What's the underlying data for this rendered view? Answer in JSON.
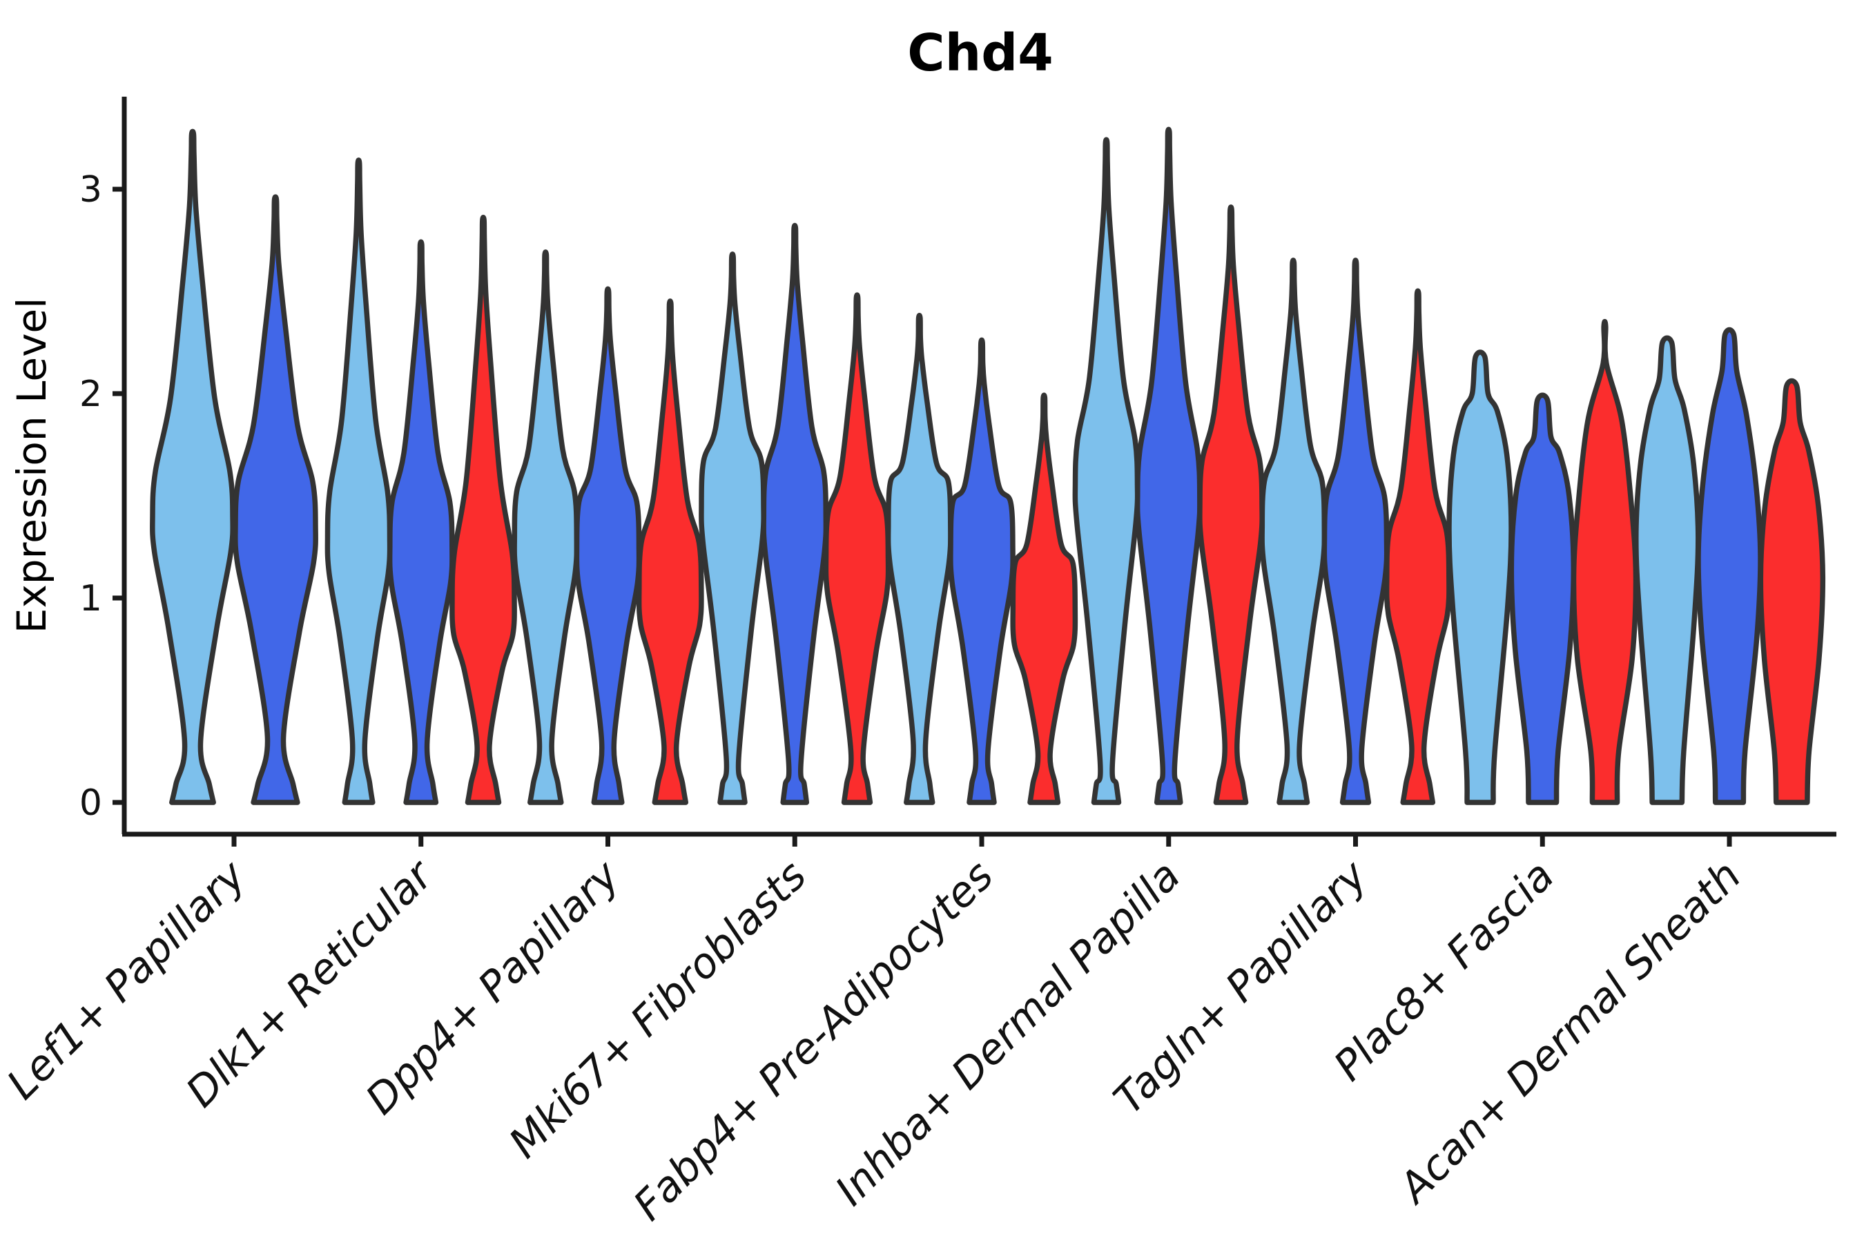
{
  "title": "Chd4",
  "chart_data": {
    "type": "violin",
    "title": "Chd4",
    "ylabel": "Expression Level",
    "xlabel": "",
    "ylim": [
      0,
      3.45
    ],
    "y_ticks": [
      0,
      1,
      2,
      3
    ],
    "grid": "off",
    "legend": "none",
    "x_tick_rotation": 45,
    "categories": [
      "Lef1+ Papillary",
      "Dlk1+ Reticular",
      "Dpp4+ Papillary",
      "Mki67+ Fibroblasts",
      "Fabp4+ Pre-Adipocytes",
      "Inhba+ Dermal Papilla",
      "Tagln+ Papillary",
      "Plac8+ Fascia",
      "Acan+ Dermal Sheath"
    ],
    "series_colors": {
      "light_blue": "#7DC0EC",
      "royal_blue": "#4167E8",
      "red": "#FB2D2D"
    },
    "stroke_color": "#333333",
    "axis_color": "#1a1a1a",
    "groups": [
      {
        "category": "Lef1+ Papillary",
        "violins": [
          {
            "series": "light_blue",
            "max": 3.27,
            "peak": 1.4,
            "pinch": 0.3,
            "foot": 0.52,
            "shape": "tailed"
          },
          {
            "series": "royal_blue",
            "max": 2.95,
            "peak": 1.35,
            "pinch": 0.32,
            "foot": 0.55,
            "shape": "tailed"
          }
        ]
      },
      {
        "category": "Dlk1+ Reticular",
        "violins": [
          {
            "series": "light_blue",
            "max": 3.13,
            "peak": 1.3,
            "pinch": 0.3,
            "foot": 0.45,
            "shape": "tailed"
          },
          {
            "series": "royal_blue",
            "max": 2.73,
            "peak": 1.25,
            "pinch": 0.3,
            "foot": 0.48,
            "shape": "tailed"
          },
          {
            "series": "red",
            "max": 2.85,
            "peak": 1.0,
            "pinch": 0.28,
            "foot": 0.5,
            "shape": "tailed"
          }
        ]
      },
      {
        "category": "Dpp4+ Papillary",
        "violins": [
          {
            "series": "light_blue",
            "max": 2.68,
            "peak": 1.3,
            "pinch": 0.3,
            "foot": 0.5,
            "shape": "tailed"
          },
          {
            "series": "royal_blue",
            "max": 2.5,
            "peak": 1.25,
            "pinch": 0.3,
            "foot": 0.45,
            "shape": "tailed"
          },
          {
            "series": "red",
            "max": 2.44,
            "peak": 1.05,
            "pinch": 0.28,
            "foot": 0.5,
            "shape": "tailed"
          }
        ]
      },
      {
        "category": "Mki67+ Fibroblasts",
        "violins": [
          {
            "series": "light_blue",
            "max": 2.67,
            "peak": 1.45,
            "pinch": 0.22,
            "foot": 0.4,
            "shape": "tailed"
          },
          {
            "series": "royal_blue",
            "max": 2.81,
            "peak": 1.4,
            "pinch": 0.2,
            "foot": 0.38,
            "shape": "tailed"
          },
          {
            "series": "red",
            "max": 2.47,
            "peak": 1.2,
            "pinch": 0.25,
            "foot": 0.42,
            "shape": "tailed"
          }
        ]
      },
      {
        "category": "Fabp4+ Pre-Adipocytes",
        "violins": [
          {
            "series": "light_blue",
            "max": 2.37,
            "peak": 1.35,
            "pinch": 0.3,
            "foot": 0.42,
            "shape": "tailed"
          },
          {
            "series": "royal_blue",
            "max": 2.25,
            "peak": 1.25,
            "pinch": 0.25,
            "foot": 0.4,
            "shape": "tailed"
          },
          {
            "series": "red",
            "max": 1.98,
            "peak": 0.95,
            "pinch": 0.25,
            "foot": 0.45,
            "shape": "tailed"
          }
        ]
      },
      {
        "category": "Inhba+ Dermal Papilla",
        "violins": [
          {
            "series": "light_blue",
            "max": 3.23,
            "peak": 1.55,
            "pinch": 0.2,
            "foot": 0.4,
            "shape": "tailed"
          },
          {
            "series": "royal_blue",
            "max": 3.28,
            "peak": 1.5,
            "pinch": 0.2,
            "foot": 0.38,
            "shape": "tailed"
          },
          {
            "series": "red",
            "max": 2.9,
            "peak": 1.45,
            "pinch": 0.3,
            "foot": 0.48,
            "shape": "tailed"
          }
        ]
      },
      {
        "category": "Tagln+ Papillary",
        "violins": [
          {
            "series": "light_blue",
            "max": 2.64,
            "peak": 1.35,
            "pinch": 0.28,
            "foot": 0.45,
            "shape": "tailed"
          },
          {
            "series": "royal_blue",
            "max": 2.64,
            "peak": 1.28,
            "pinch": 0.26,
            "foot": 0.42,
            "shape": "tailed"
          },
          {
            "series": "red",
            "max": 2.49,
            "peak": 1.1,
            "pinch": 0.28,
            "foot": 0.48,
            "shape": "tailed"
          }
        ]
      },
      {
        "category": "Plac8+ Fascia",
        "violins": [
          {
            "series": "light_blue",
            "max": 2.18,
            "peak": 1.35,
            "foot": 0.42,
            "tip_w": 0.15,
            "shape": "blunt"
          },
          {
            "series": "royal_blue",
            "max": 1.97,
            "peak": 1.15,
            "foot": 0.45,
            "tip_w": 0.16,
            "shape": "blunt"
          },
          {
            "series": "red",
            "max": 2.33,
            "peak": 1.1,
            "foot": 0.4,
            "tip_w": 0.03,
            "shape": "blunt"
          }
        ]
      },
      {
        "category": "Acan+ Dermal Sheath",
        "violins": [
          {
            "series": "light_blue",
            "max": 2.25,
            "peak": 1.3,
            "foot": 0.48,
            "tip_w": 0.15,
            "shape": "blunt"
          },
          {
            "series": "royal_blue",
            "max": 2.29,
            "peak": 1.2,
            "foot": 0.45,
            "tip_w": 0.14,
            "shape": "blunt"
          },
          {
            "series": "red",
            "max": 2.04,
            "peak": 1.1,
            "foot": 0.5,
            "tip_w": 0.16,
            "shape": "blunt"
          }
        ]
      }
    ]
  }
}
